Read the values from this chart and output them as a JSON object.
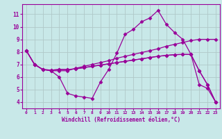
{
  "background_color": "#c8e8e8",
  "grid_color": "#b0c8c8",
  "line_color": "#990099",
  "marker_color": "#990099",
  "xlabel": "Windchill (Refroidissement éolien,°C)",
  "xlim": [
    -0.5,
    23.5
  ],
  "ylim": [
    3.5,
    11.8
  ],
  "yticks": [
    4,
    5,
    6,
    7,
    8,
    9,
    10,
    11
  ],
  "xticks": [
    0,
    1,
    2,
    3,
    4,
    5,
    6,
    7,
    8,
    9,
    10,
    11,
    12,
    13,
    14,
    15,
    16,
    17,
    18,
    19,
    20,
    21,
    22,
    23
  ],
  "line1_x": [
    0,
    1,
    2,
    3,
    4,
    5,
    6,
    7,
    8,
    9,
    10,
    11,
    12,
    13,
    14,
    15,
    16,
    17,
    18,
    19,
    20,
    21,
    22,
    23
  ],
  "line1_y": [
    8.1,
    7.0,
    6.6,
    6.5,
    6.0,
    4.7,
    4.5,
    4.4,
    4.3,
    5.6,
    6.6,
    7.9,
    9.4,
    9.8,
    10.4,
    10.7,
    11.3,
    10.2,
    9.55,
    9.0,
    7.8,
    5.4,
    5.1,
    4.0
  ],
  "line2_x": [
    0,
    1,
    2,
    3,
    4,
    5,
    6,
    7,
    8,
    9,
    10,
    11,
    12,
    13,
    14,
    15,
    16,
    17,
    18,
    19,
    20,
    21,
    22,
    23
  ],
  "line2_y": [
    8.1,
    7.0,
    6.6,
    6.5,
    6.5,
    6.5,
    6.7,
    6.85,
    7.0,
    7.15,
    7.3,
    7.5,
    7.65,
    7.8,
    7.95,
    8.1,
    8.25,
    8.45,
    8.6,
    8.75,
    8.9,
    9.0,
    9.0,
    9.0
  ],
  "line3_x": [
    0,
    1,
    2,
    3,
    4,
    5,
    6,
    7,
    8,
    9,
    10,
    11,
    12,
    13,
    14,
    15,
    16,
    17,
    18,
    19,
    20,
    21,
    22,
    23
  ],
  "line3_y": [
    8.1,
    7.0,
    6.6,
    6.55,
    6.6,
    6.6,
    6.65,
    6.75,
    6.85,
    6.95,
    7.05,
    7.15,
    7.25,
    7.35,
    7.45,
    7.55,
    7.65,
    7.72,
    7.78,
    7.8,
    7.8,
    6.5,
    5.4,
    4.0
  ],
  "line4_x": [
    0,
    1,
    2,
    3,
    4,
    5,
    6,
    7,
    8,
    9,
    10,
    11,
    12,
    13,
    14,
    15,
    16,
    17,
    18,
    19,
    20,
    21,
    22,
    23
  ],
  "line4_y": [
    8.1,
    7.0,
    6.6,
    6.55,
    6.6,
    6.6,
    6.65,
    6.75,
    6.85,
    6.95,
    7.05,
    7.15,
    7.25,
    7.35,
    7.45,
    7.55,
    7.65,
    7.72,
    7.78,
    7.8,
    7.8,
    6.5,
    5.4,
    4.0
  ]
}
